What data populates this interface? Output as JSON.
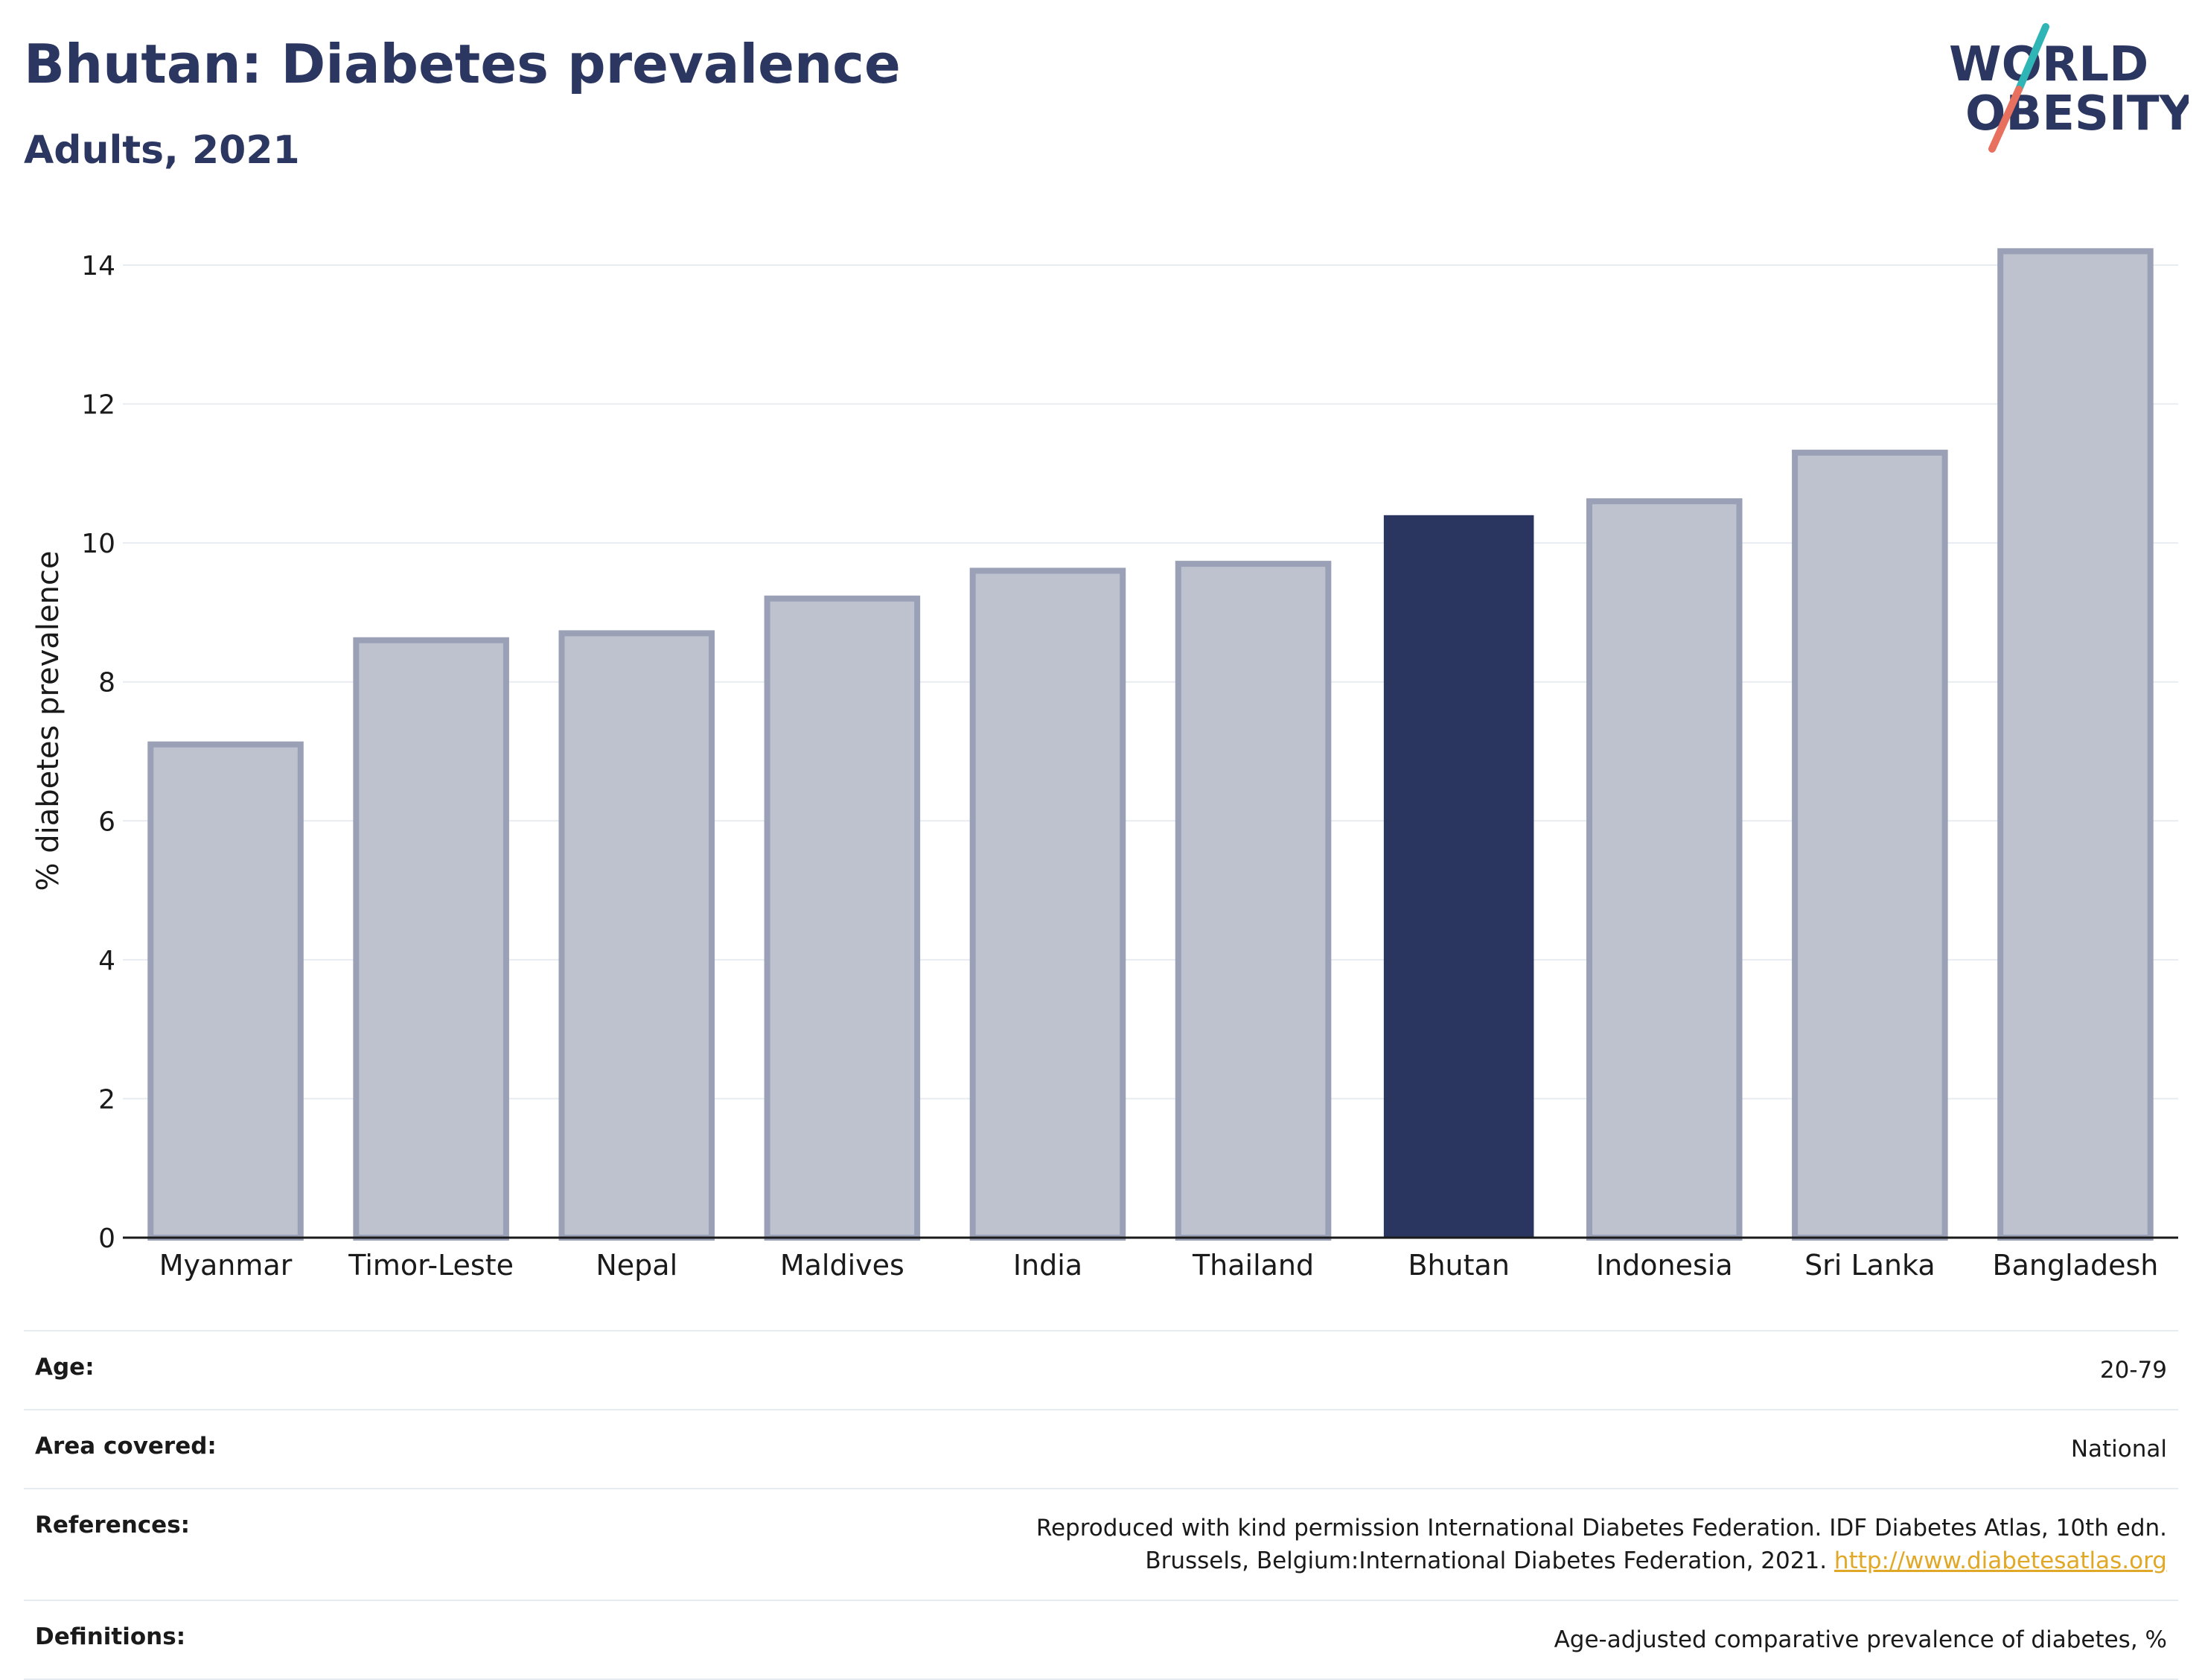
{
  "header": {
    "title": "Bhutan: Diabetes prevalence",
    "subtitle": "Adults, 2021"
  },
  "logo": {
    "line1": "WORLD",
    "line2": "OBESITY"
  },
  "colors": {
    "title": "#2b3661",
    "highlight_bar": "#2a3660",
    "other_bar_fill": "#bec2ce",
    "other_bar_stroke": "#9aa1b7",
    "logo_teal": "#2fb5b5",
    "logo_coral": "#e8705e",
    "link": "#e0a826"
  },
  "chart_data": {
    "type": "bar",
    "categories": [
      "Myanmar",
      "Timor-Leste",
      "Nepal",
      "Maldives",
      "India",
      "Thailand",
      "Bhutan",
      "Indonesia",
      "Sri Lanka",
      "Bangladesh"
    ],
    "values": [
      7.1,
      8.6,
      8.7,
      9.2,
      9.6,
      9.7,
      10.4,
      10.6,
      11.3,
      14.2
    ],
    "highlight": "Bhutan",
    "ylabel": "% diabetes prevalence",
    "xlabel": "",
    "ylim": [
      0,
      14.6
    ],
    "yticks": [
      0,
      2,
      4,
      6,
      8,
      10,
      12,
      14
    ],
    "grid": true
  },
  "info": {
    "age_label": "Age:",
    "age_value": "20-79",
    "area_label": "Area covered:",
    "area_value": "National",
    "references_label": "References:",
    "references_text": "Reproduced with kind permission International Diabetes Federation.  IDF Diabetes Atlas, 10th edn. Brussels, Belgium:International Diabetes Federation, 2021.",
    "references_link": "http://www.diabetesatlas.org",
    "definitions_label": "Definitions:",
    "definitions_value": "Age-adjusted comparative prevalence of diabetes, %"
  }
}
